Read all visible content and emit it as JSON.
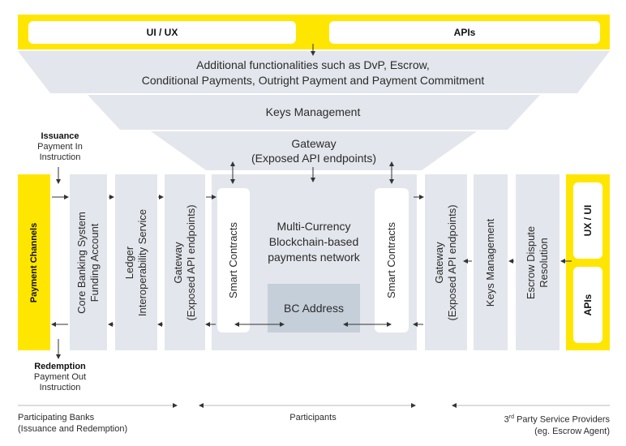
{
  "top_bar": {
    "ui_ux_label": "UI / UX",
    "apis_label": "APIs"
  },
  "funnel": {
    "functionalities_line1": "Additional functionalities such as DvP, Escrow,",
    "functionalities_line2": "Conditional Payments, Outright Payment and Payment Commitment",
    "keys_management": "Keys Management",
    "gateway_line1": "Gateway",
    "gateway_line2": "(Exposed API endpoints)"
  },
  "left_side": {
    "issuance_title": "Issuance",
    "issuance_line1": "Payment In",
    "issuance_line2": "Instruction",
    "payment_channels": "Payment Channels",
    "redemption_title": "Redemption",
    "redemption_line1": "Payment Out",
    "redemption_line2": "Instruction"
  },
  "columns": {
    "core_banking_line1": "Core Banking System",
    "core_banking_line2": "Funding Account",
    "ledger_line1": "Ledger",
    "ledger_line2": "Interoperability Service",
    "gateway_left_line1": "Gateway",
    "gateway_left_line2": "(Exposed API endpoints)",
    "gateway_right_line1": "Gateway",
    "gateway_right_line2": "(Exposed API endpoints)",
    "keys_management": "Keys Management",
    "escrow_line1": "Escrow Dispute",
    "escrow_line2": "Resolution"
  },
  "network": {
    "smart_contracts_left": "Smart Contracts",
    "smart_contracts_right": "Smart Contracts",
    "title_line1": "Multi-Currency",
    "title_line2": "Blockchain-based",
    "title_line3": "payments network",
    "bc_address": "BC Address"
  },
  "right_side": {
    "ux_ui_label": "UX / UI",
    "apis_label": "APIs"
  },
  "footer": {
    "banks_line1": "Participating Banks",
    "banks_line2": "(Issuance and Redemption)",
    "participants": "Participants",
    "third_party_prefix": "3",
    "third_party_sup": "rd",
    "third_party_rest": " Party Service Providers",
    "third_party_line2": "(eg. Escrow Agent)"
  },
  "colors": {
    "yellow": "#ffe600",
    "panel_grey": "#e3e6ec",
    "bc_box": "#c5cfda",
    "arrow": "#333333"
  }
}
